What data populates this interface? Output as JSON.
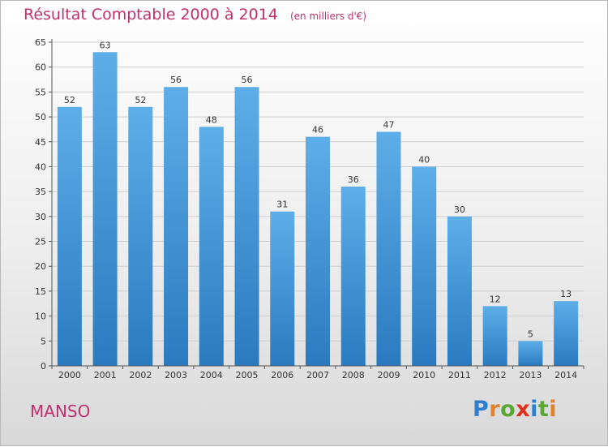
{
  "header": {
    "title": "Résultat Comptable 2000 à 2014",
    "subtitle": "(en milliers d'€)"
  },
  "footer": {
    "town": "MANSO",
    "logo_letters": [
      "P",
      "r",
      "o",
      "x",
      "i",
      "t",
      "i"
    ],
    "logo_colors": [
      "#2f7fd0",
      "#e0832a",
      "#5aa832",
      "#e0301e",
      "#2f7fd0",
      "#5aa832",
      "#e0832a"
    ]
  },
  "colors": {
    "bar_top": "#5daee8",
    "bar_bottom": "#2a7ac0",
    "grid": "#cfcfcf",
    "title": "#c0306e"
  },
  "chart_data": {
    "type": "bar",
    "title": "Résultat Comptable 2000 à 2014",
    "subtitle": "(en milliers d'€)",
    "xlabel": "",
    "ylabel": "",
    "categories": [
      "2000",
      "2001",
      "2002",
      "2003",
      "2004",
      "2005",
      "2006",
      "2007",
      "2008",
      "2009",
      "2010",
      "2011",
      "2012",
      "2013",
      "2014"
    ],
    "values": [
      52,
      63,
      52,
      56,
      48,
      56,
      31,
      46,
      36,
      47,
      40,
      30,
      12,
      5,
      13
    ],
    "ylim": [
      0,
      65
    ],
    "yticks": [
      0,
      5,
      10,
      15,
      20,
      25,
      30,
      35,
      40,
      45,
      50,
      55,
      60,
      65
    ],
    "grid": true,
    "legend": "none"
  }
}
